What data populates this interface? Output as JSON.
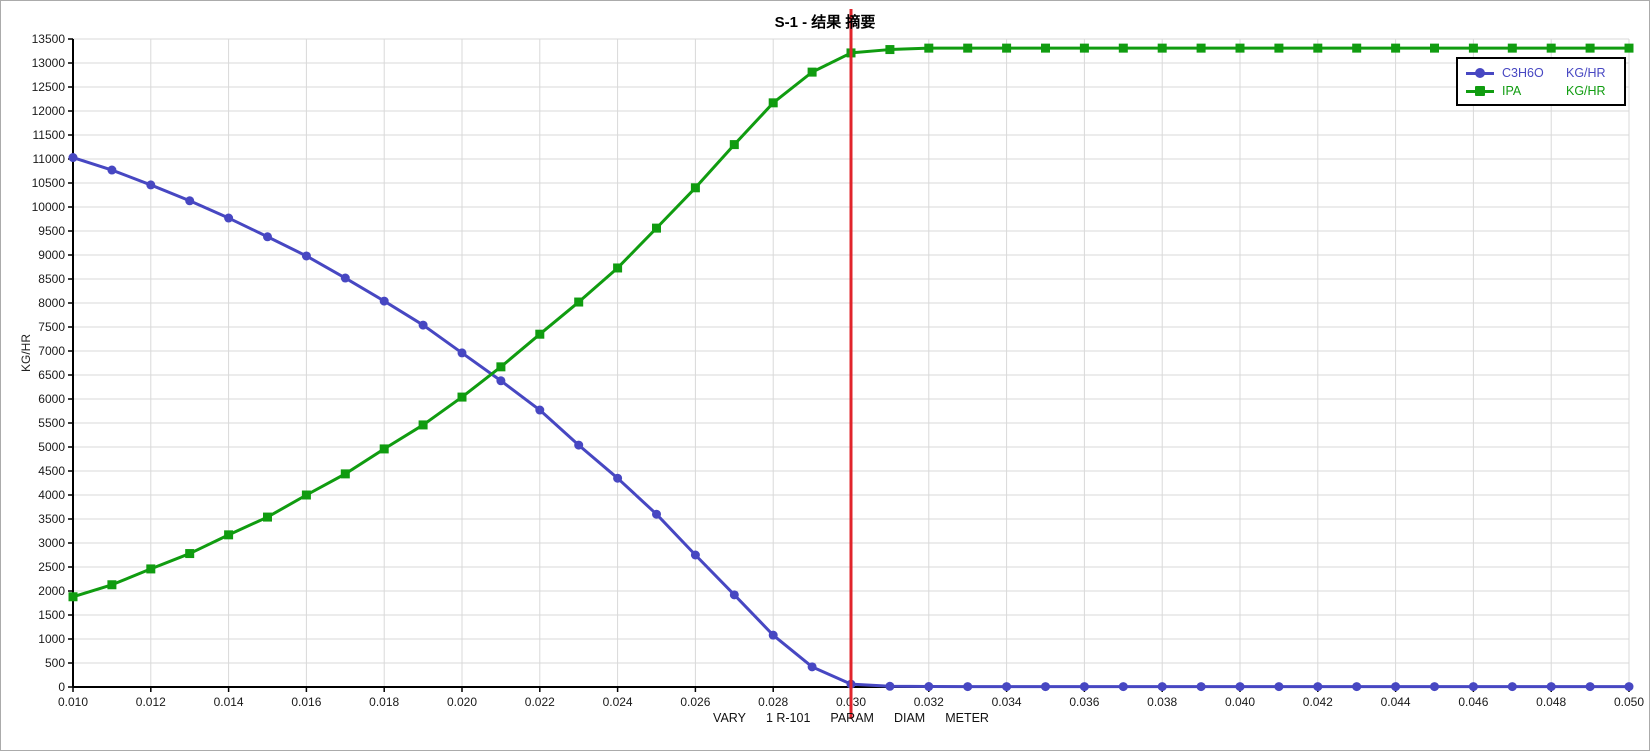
{
  "title": "S-1 - 结果 摘要",
  "chart_data": {
    "type": "line",
    "xlabel_parts": [
      "VARY",
      "1 R-101",
      "PARAM",
      "DIAM",
      "METER"
    ],
    "ylabel": "KG/HR",
    "xlim": [
      0.01,
      0.05
    ],
    "ylim": [
      0,
      13500
    ],
    "grid": true,
    "legend_position": "top-right",
    "x_ticks": [
      "0.010",
      "0.012",
      "0.014",
      "0.016",
      "0.018",
      "0.020",
      "0.022",
      "0.024",
      "0.026",
      "0.028",
      "0.030",
      "0.032",
      "0.034",
      "0.036",
      "0.038",
      "0.040",
      "0.042",
      "0.044",
      "0.046",
      "0.048",
      "0.050"
    ],
    "y_ticks": [
      0,
      500,
      1000,
      1500,
      2000,
      2500,
      3000,
      3500,
      4000,
      4500,
      5000,
      5500,
      6000,
      6500,
      7000,
      7500,
      8000,
      8500,
      9000,
      9500,
      10000,
      10500,
      11000,
      11500,
      12000,
      12500,
      13000,
      13500
    ],
    "x": [
      0.01,
      0.011,
      0.012,
      0.013,
      0.014,
      0.015,
      0.016,
      0.017,
      0.018,
      0.019,
      0.02,
      0.021,
      0.022,
      0.023,
      0.024,
      0.025,
      0.026,
      0.027,
      0.028,
      0.029,
      0.03,
      0.031,
      0.032,
      0.033,
      0.034,
      0.035,
      0.036,
      0.037,
      0.038,
      0.039,
      0.04,
      0.041,
      0.042,
      0.043,
      0.044,
      0.045,
      0.046,
      0.047,
      0.048,
      0.049,
      0.05
    ],
    "series": [
      {
        "name": "C3H6O",
        "unit": "KG/HR",
        "color": "#4747c2",
        "marker": "circle",
        "values": [
          11030,
          10770,
          10460,
          10130,
          9770,
          9380,
          8980,
          8520,
          8040,
          7540,
          6960,
          6380,
          5770,
          5040,
          4350,
          3600,
          2750,
          1920,
          1080,
          420,
          60,
          15,
          10,
          8,
          8,
          8,
          8,
          8,
          8,
          8,
          8,
          8,
          8,
          8,
          8,
          8,
          8,
          8,
          8,
          8,
          8
        ]
      },
      {
        "name": "IPA",
        "unit": "KG/HR",
        "color": "#109c10",
        "marker": "square",
        "values": [
          1880,
          2130,
          2460,
          2780,
          3170,
          3540,
          4000,
          4440,
          4960,
          5460,
          6040,
          6670,
          7350,
          8020,
          8730,
          9560,
          10400,
          11300,
          12170,
          12810,
          13210,
          13280,
          13310,
          13310,
          13310,
          13310,
          13310,
          13310,
          13310,
          13310,
          13310,
          13310,
          13310,
          13310,
          13310,
          13310,
          13310,
          13310,
          13310,
          13310,
          13310
        ]
      }
    ],
    "cursor_line": {
      "x": 0.03,
      "color": "#e1242b"
    },
    "colors": {
      "grid": "#d9d9d9",
      "axis": "#000000",
      "tick_label": "#1a1a1a"
    }
  }
}
